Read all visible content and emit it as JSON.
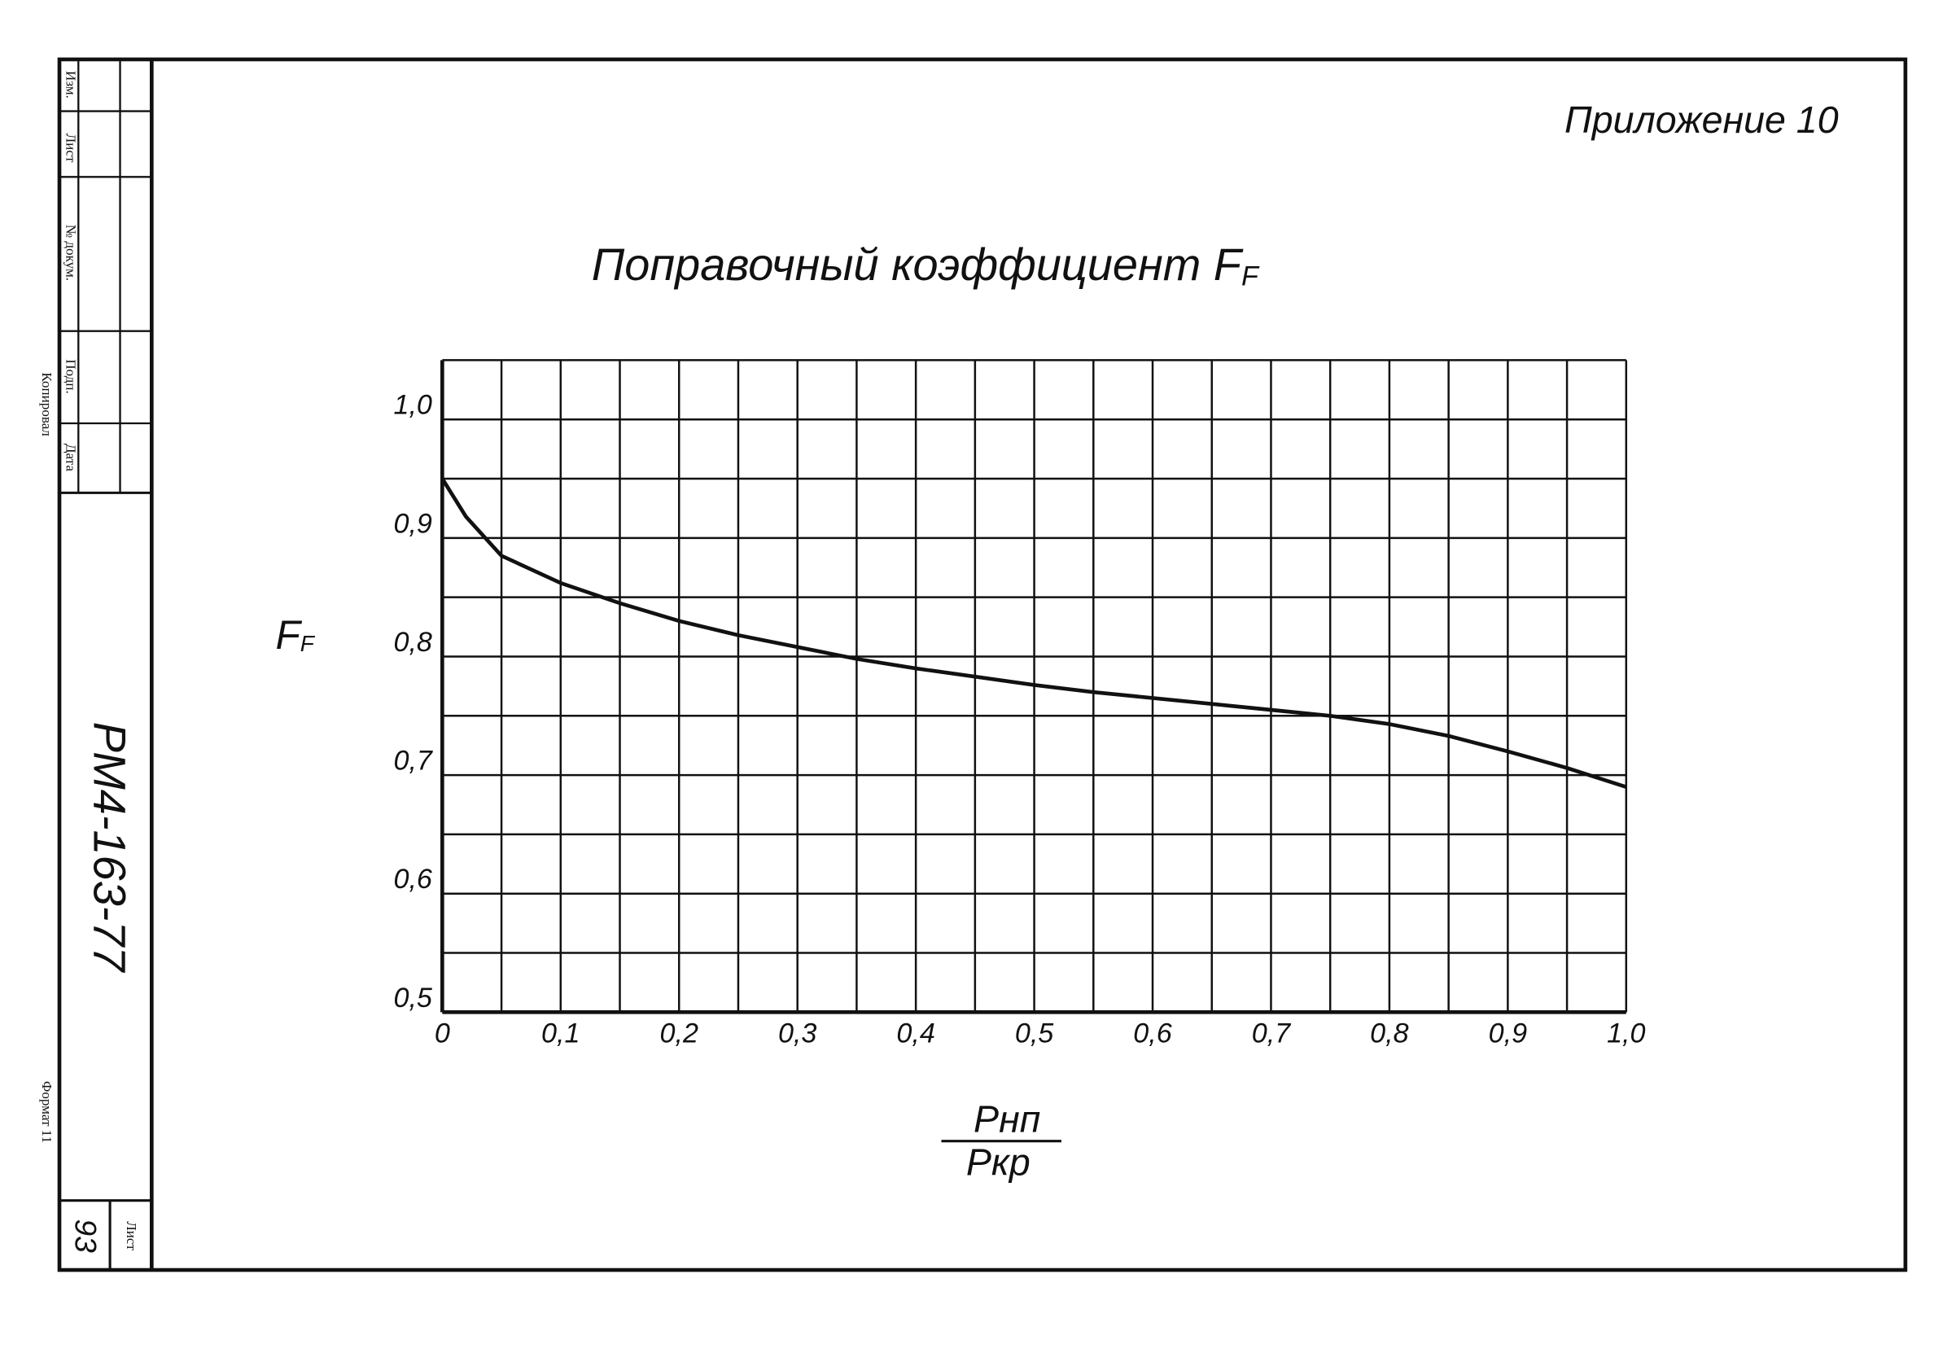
{
  "document": {
    "appendix": "Приложение 10",
    "stamp": {
      "change": "Изм.",
      "sheet": "Лист",
      "doc_no": "№ докум.",
      "signature": "Подп.",
      "date": "Дата"
    },
    "copied": "Копировал",
    "designation": "РМ4-163-77",
    "format": "Формат 11",
    "sheet_label": "Лист",
    "sheet_no": "93"
  },
  "chart_data": {
    "type": "line",
    "title": "Поправочный коэффициент F",
    "title_subscript": "F",
    "y_label": "F",
    "y_label_subscript": "F",
    "x_label_numerator": "Рнп",
    "x_label_denominator": "Ркр",
    "x": [
      0,
      0.02,
      0.05,
      0.1,
      0.15,
      0.2,
      0.25,
      0.3,
      0.35,
      0.4,
      0.45,
      0.5,
      0.55,
      0.6,
      0.65,
      0.7,
      0.75,
      0.8,
      0.85,
      0.9,
      0.95,
      1.0
    ],
    "series": [
      {
        "name": "F",
        "color": "#111111",
        "values": [
          0.95,
          0.918,
          0.885,
          0.862,
          0.845,
          0.83,
          0.818,
          0.808,
          0.798,
          0.79,
          0.783,
          0.776,
          0.77,
          0.765,
          0.76,
          0.755,
          0.75,
          0.743,
          0.733,
          0.72,
          0.706,
          0.69
        ]
      }
    ],
    "xlim": [
      0,
      1.0
    ],
    "ylim": [
      0.5,
      1.05
    ],
    "xticks": [
      0,
      {
        "value": 0.1,
        "label": "0,1"
      },
      {
        "value": 0.2,
        "label": "0,2"
      },
      {
        "value": 0.3,
        "label": "0,3"
      },
      {
        "value": 0.4,
        "label": "0,4"
      },
      {
        "value": 0.5,
        "label": "0,5"
      },
      {
        "value": 0.6,
        "label": "0,6"
      },
      {
        "value": 0.7,
        "label": "0,7"
      },
      {
        "value": 0.8,
        "label": "0,8"
      },
      {
        "value": 0.9,
        "label": "0,9"
      },
      {
        "value": 1.0,
        "label": "1,0"
      }
    ],
    "yticks": [
      {
        "value": 0.5,
        "label": "0,5"
      },
      {
        "value": 0.6,
        "label": "0,6"
      },
      {
        "value": 0.7,
        "label": "0,7"
      },
      {
        "value": 0.8,
        "label": "0,8"
      },
      {
        "value": 0.9,
        "label": "0,9"
      },
      {
        "value": 1.0,
        "label": "1,0"
      }
    ],
    "x_minor_grid": [
      0.05,
      0.15,
      0.25,
      0.35,
      0.45,
      0.55,
      0.65,
      0.75,
      0.85,
      0.95
    ],
    "y_minor_grid": [
      0.55,
      0.65,
      0.75,
      0.85,
      0.95,
      1.05
    ],
    "grid": true
  }
}
